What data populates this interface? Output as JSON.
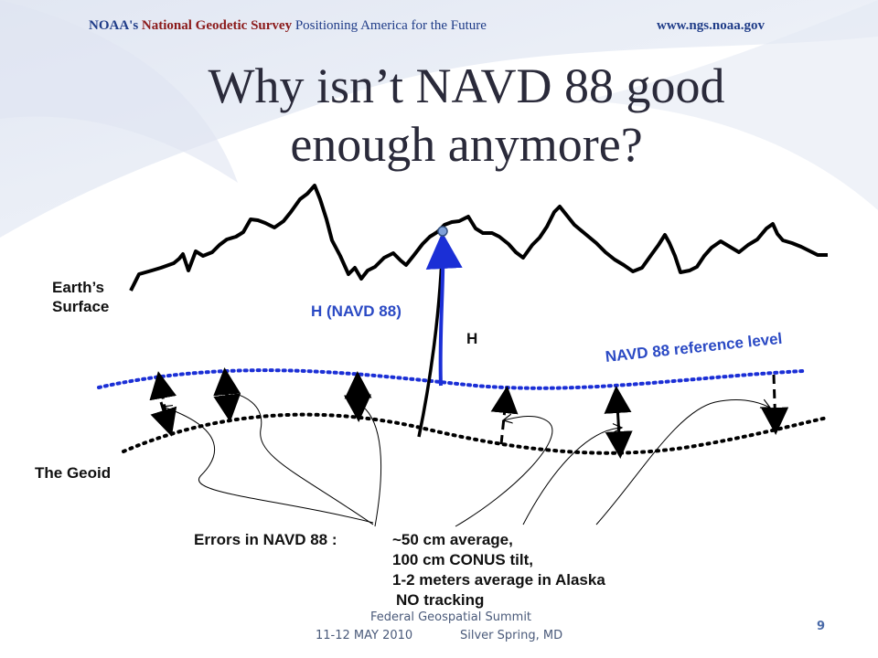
{
  "header": {
    "noaa": "NOAA's",
    "ngs": "National Geodetic Survey",
    "tagline": "Positioning America for the Future",
    "url": "www.ngs.noaa.gov"
  },
  "title": {
    "line1": "Why isn’t NAVD 88 good",
    "line2": "enough anymore?"
  },
  "labels": {
    "earth_surface_line1": "Earth’s",
    "earth_surface_line2": "Surface",
    "h_navd": "H (NAVD 88)",
    "h": "H",
    "navd_ref": "NAVD 88 reference level",
    "geoid": "The Geoid"
  },
  "errors": {
    "lead": "Errors in NAVD 88 :",
    "line1": "~50 cm average,",
    "line2": "100 cm CONUS tilt,",
    "line3": "1-2 meters average in Alaska",
    "line4": "NO tracking"
  },
  "footer": {
    "event": "Federal Geospatial Summit",
    "date": "11-12 MAY 2010",
    "place": "Silver Spring, MD",
    "page": "9"
  },
  "colors": {
    "accent_blue": "#2a49c4",
    "terrain": "#000000",
    "title": "#2a2a3a"
  }
}
